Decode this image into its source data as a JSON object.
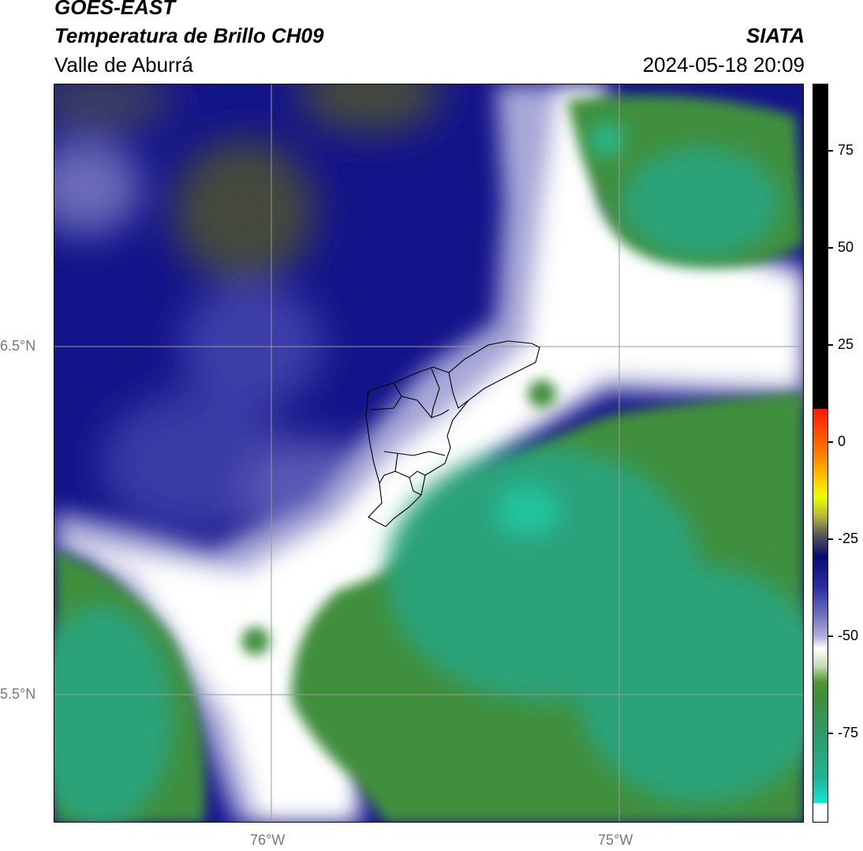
{
  "header": {
    "satellite": "GOES-EAST",
    "product": "Temperatura de Brillo CH09",
    "region": "Valle de Aburrá",
    "agency": "SIATA",
    "datetime": "2024-05-18 20:09"
  },
  "map": {
    "lat_labels": [
      "6.5°N",
      "5.5°N"
    ],
    "lon_labels": [
      "76°W",
      "75°W"
    ],
    "colors": {
      "dark_blue": "#0a0a6e",
      "mid_blue": "#3c3ca8",
      "light_blue": "#a8a8d8",
      "white": "#ffffff",
      "dark_green": "#4f9a34",
      "teal": "#2aa37a",
      "cyan": "#22c4a0",
      "olive_gray": "#454a3c",
      "boundary": "#000000"
    }
  },
  "colorbar": {
    "ticks": [
      "75",
      "50",
      "25",
      "0",
      "-25",
      "-50",
      "-75"
    ],
    "tick_values": [
      75,
      50,
      25,
      0,
      -25,
      -50,
      -75
    ]
  }
}
